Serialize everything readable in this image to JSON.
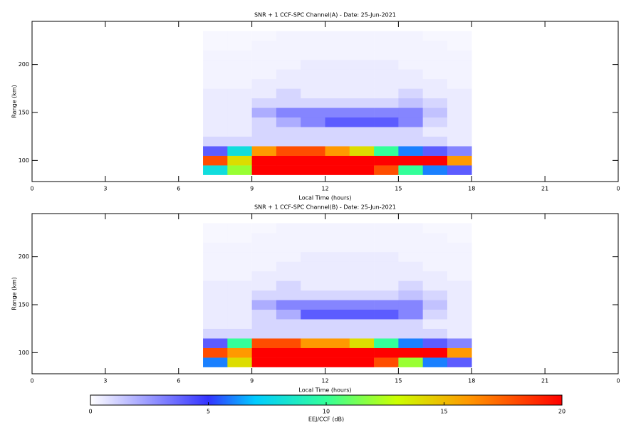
{
  "chart_data": [
    {
      "type": "heatmap",
      "title": "SNR + 1 CCF-SPC Channel(A) - Date: 25-Jun-2021",
      "xlabel": "Local Time (hours)",
      "ylabel": "Range (km)",
      "xlim": [
        0,
        24
      ],
      "xticks": [
        0,
        3,
        6,
        9,
        12,
        15,
        18,
        21,
        {
          "value": 24,
          "label": "0"
        }
      ],
      "ylim": [
        78,
        245
      ],
      "yticks": [
        100,
        150,
        200
      ],
      "xbins": [
        7,
        8,
        9,
        10,
        11,
        12,
        13,
        14,
        15,
        16,
        17,
        18
      ],
      "ybins": [
        85,
        95,
        105,
        115,
        125,
        135,
        145,
        155,
        165,
        175,
        185,
        195,
        205,
        215,
        225,
        235
      ],
      "values": [
        [
          8,
          12,
          20,
          20,
          20,
          20,
          20,
          18,
          10,
          6,
          4
        ],
        [
          18,
          14,
          20,
          20,
          20,
          20,
          20,
          20,
          20,
          20,
          16
        ],
        [
          4,
          8,
          16,
          18,
          18,
          16,
          14,
          10,
          6,
          4,
          3
        ],
        [
          1,
          1,
          1,
          1,
          1,
          1,
          1,
          1,
          1,
          1,
          0.5
        ],
        [
          0.5,
          0.5,
          1,
          1,
          1,
          1,
          1,
          1,
          1,
          0.5,
          0.5
        ],
        [
          0.5,
          0.5,
          1,
          2,
          3,
          4,
          4,
          4,
          3,
          1,
          0.5
        ],
        [
          0.5,
          0.5,
          2,
          3,
          3,
          3,
          3,
          3,
          3,
          1.5,
          0.5
        ],
        [
          0.5,
          0.5,
          1,
          1,
          1,
          1,
          1,
          1,
          1.5,
          1,
          0.5
        ],
        [
          0.5,
          0.5,
          0.5,
          1,
          0.5,
          0.5,
          0.5,
          0.5,
          1,
          0.5,
          0.5
        ],
        [
          0.3,
          0.3,
          0.5,
          0.5,
          0.5,
          0.5,
          0.5,
          0.5,
          0.5,
          0.5,
          0.3
        ],
        [
          0.3,
          0.3,
          0.3,
          0.5,
          0.5,
          0.5,
          0.5,
          0.5,
          0.5,
          0.3,
          0.3
        ],
        [
          0.3,
          0.3,
          0.3,
          0.3,
          0.5,
          0.5,
          0.5,
          0.5,
          0.3,
          0.3,
          0.3
        ],
        [
          0.3,
          0.3,
          0.3,
          0.3,
          0.3,
          0.3,
          0.3,
          0.3,
          0.3,
          0.3,
          0.3
        ],
        [
          0.2,
          0.2,
          0.3,
          0.3,
          0.3,
          0.3,
          0.3,
          0.3,
          0.3,
          0.3,
          0.2
        ],
        [
          0.2,
          0.2,
          0.2,
          0.3,
          0.3,
          0.3,
          0.3,
          0.3,
          0.3,
          0.2,
          0.2
        ]
      ]
    },
    {
      "type": "heatmap",
      "title": "SNR + 1 CCF-SPC Channel(B) - Date: 25-Jun-2021",
      "xlabel": "Local Time (hours)",
      "ylabel": "Range (km)",
      "xlim": [
        0,
        24
      ],
      "xticks": [
        0,
        3,
        6,
        9,
        12,
        15,
        18,
        21,
        {
          "value": 24,
          "label": "0"
        }
      ],
      "ylim": [
        78,
        245
      ],
      "yticks": [
        100,
        150,
        200
      ],
      "xbins": [
        7,
        8,
        9,
        10,
        11,
        12,
        13,
        14,
        15,
        16,
        17,
        18
      ],
      "ybins": [
        85,
        95,
        105,
        115,
        125,
        135,
        145,
        155,
        165,
        175,
        185,
        195,
        205,
        215,
        225,
        235
      ],
      "values": [
        [
          6,
          14,
          20,
          20,
          20,
          20,
          20,
          18,
          12,
          6,
          4
        ],
        [
          18,
          16,
          20,
          20,
          20,
          20,
          20,
          20,
          20,
          20,
          16
        ],
        [
          4,
          10,
          18,
          18,
          16,
          16,
          14,
          10,
          6,
          4,
          3
        ],
        [
          1,
          1,
          1,
          1,
          1,
          1,
          1,
          1,
          1,
          1,
          0.5
        ],
        [
          0.5,
          0.5,
          1,
          1,
          1,
          1,
          1,
          1,
          1,
          0.5,
          0.5
        ],
        [
          0.5,
          0.5,
          1,
          2,
          4,
          4,
          4,
          4,
          3,
          1,
          0.5
        ],
        [
          0.5,
          0.5,
          2,
          3,
          3,
          3,
          3,
          3,
          3,
          1.5,
          0.5
        ],
        [
          0.5,
          0.5,
          1,
          1,
          1,
          1,
          1,
          1,
          1.5,
          1,
          0.5
        ],
        [
          0.5,
          0.5,
          0.5,
          1,
          0.5,
          0.5,
          0.5,
          0.5,
          1,
          0.5,
          0.5
        ],
        [
          0.3,
          0.3,
          0.5,
          0.5,
          0.5,
          0.5,
          0.5,
          0.5,
          0.5,
          0.5,
          0.3
        ],
        [
          0.3,
          0.3,
          0.3,
          0.5,
          0.5,
          0.5,
          0.5,
          0.5,
          0.5,
          0.3,
          0.3
        ],
        [
          0.3,
          0.3,
          0.3,
          0.3,
          0.5,
          0.5,
          0.5,
          0.5,
          0.3,
          0.3,
          0.3
        ],
        [
          0.3,
          0.3,
          0.3,
          0.3,
          0.3,
          0.3,
          0.3,
          0.3,
          0.3,
          0.3,
          0.3
        ],
        [
          0.2,
          0.2,
          0.3,
          0.3,
          0.3,
          0.3,
          0.3,
          0.3,
          0.3,
          0.3,
          0.2
        ],
        [
          0.2,
          0.2,
          0.2,
          0.3,
          0.3,
          0.3,
          0.3,
          0.3,
          0.3,
          0.2,
          0.2
        ]
      ]
    }
  ],
  "colorbar": {
    "label": "EEJ/CCF (dB)",
    "lim": [
      0,
      20
    ],
    "ticks": [
      0,
      5,
      10,
      15,
      20
    ],
    "colorscale": [
      [
        0,
        "#ffffff"
      ],
      [
        5,
        "#3333ff"
      ],
      [
        7,
        "#00ccff"
      ],
      [
        10,
        "#33ff99"
      ],
      [
        13,
        "#ccff00"
      ],
      [
        16,
        "#ff9900"
      ],
      [
        20,
        "#ff0000"
      ]
    ]
  }
}
